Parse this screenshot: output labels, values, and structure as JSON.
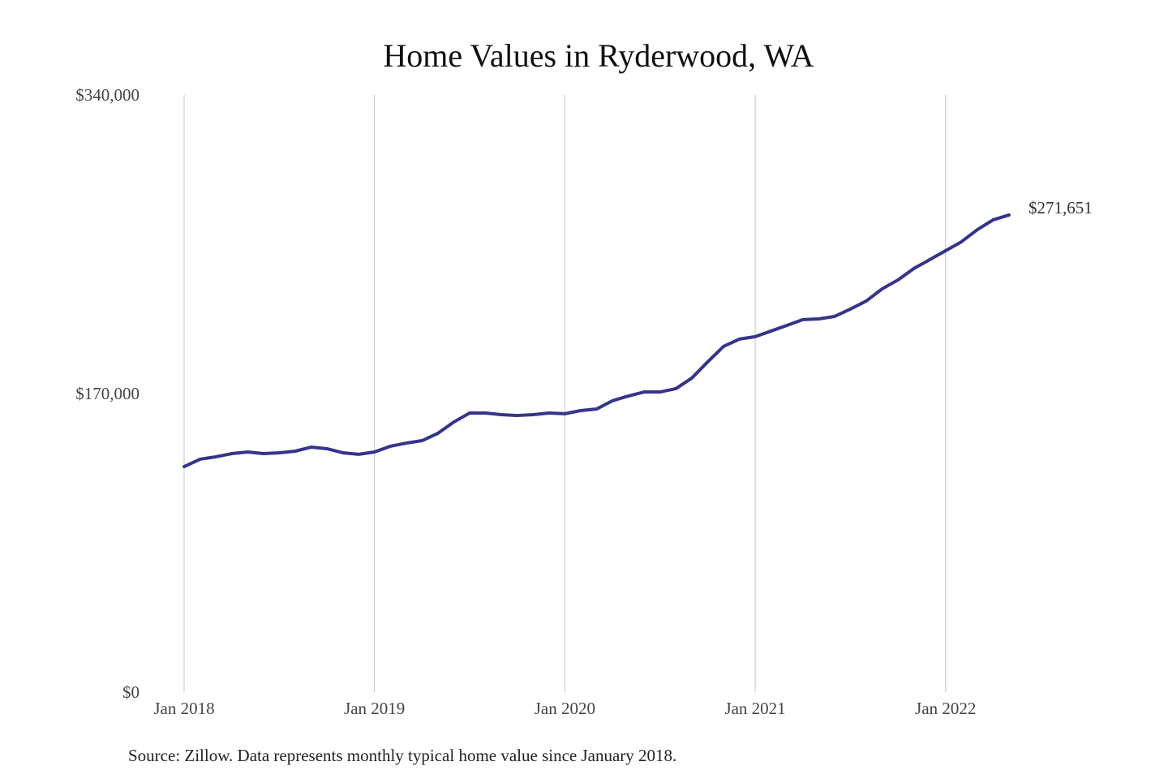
{
  "chart_data": {
    "type": "line",
    "title": "Home Values in Ryderwood, WA",
    "source": "Source: Zillow. Data represents monthly typical home value since January 2018.",
    "x": [
      "2018-01",
      "2018-02",
      "2018-03",
      "2018-04",
      "2018-05",
      "2018-06",
      "2018-07",
      "2018-08",
      "2018-09",
      "2018-10",
      "2018-11",
      "2018-12",
      "2019-01",
      "2019-02",
      "2019-03",
      "2019-04",
      "2019-05",
      "2019-06",
      "2019-07",
      "2019-08",
      "2019-09",
      "2019-10",
      "2019-11",
      "2019-12",
      "2020-01",
      "2020-02",
      "2020-03",
      "2020-04",
      "2020-05",
      "2020-06",
      "2020-07",
      "2020-08",
      "2020-09",
      "2020-10",
      "2020-11",
      "2020-12",
      "2021-01",
      "2021-02",
      "2021-03",
      "2021-04",
      "2021-05",
      "2021-06",
      "2021-07",
      "2021-08",
      "2021-09",
      "2021-10",
      "2021-11",
      "2021-12",
      "2022-01",
      "2022-02",
      "2022-03",
      "2022-04",
      "2022-05"
    ],
    "series": [
      {
        "name": "Typical home value",
        "color": "#35348a",
        "values": [
          128400,
          132600,
          134000,
          135800,
          136750,
          135800,
          136300,
          137200,
          139500,
          138600,
          136300,
          135400,
          136750,
          140000,
          141800,
          143200,
          147400,
          153800,
          158900,
          158900,
          158000,
          157500,
          158000,
          158900,
          158500,
          160300,
          161200,
          165900,
          168600,
          170900,
          170900,
          172800,
          178800,
          188000,
          196800,
          201000,
          202400,
          205600,
          208800,
          212100,
          212500,
          213900,
          218100,
          222700,
          229600,
          234700,
          241200,
          246200,
          251300,
          256400,
          263300,
          268900,
          271651
        ],
        "value_labels": [
          null,
          null,
          null,
          null,
          null,
          null,
          null,
          null,
          null,
          null,
          null,
          null,
          null,
          null,
          null,
          null,
          null,
          null,
          null,
          null,
          null,
          null,
          null,
          null,
          null,
          null,
          null,
          null,
          null,
          null,
          null,
          null,
          null,
          null,
          null,
          null,
          null,
          null,
          null,
          null,
          null,
          null,
          null,
          null,
          null,
          null,
          null,
          null,
          null,
          null,
          null,
          null,
          "$271,651"
        ]
      }
    ],
    "xlim": [
      "2018-01",
      "2022-05"
    ],
    "xticks": [
      {
        "value": "2018-01",
        "label": "Jan 2018"
      },
      {
        "value": "2019-01",
        "label": "Jan 2019"
      },
      {
        "value": "2020-01",
        "label": "Jan 2020"
      },
      {
        "value": "2021-01",
        "label": "Jan 2021"
      },
      {
        "value": "2022-01",
        "label": "Jan 2022"
      }
    ],
    "ylim": [
      0,
      340000
    ],
    "yticks": [
      {
        "value": 0,
        "label": "$0"
      },
      {
        "value": 170000,
        "label": "$170,000"
      },
      {
        "value": 340000,
        "label": "$340,000"
      }
    ],
    "grid": "x"
  }
}
